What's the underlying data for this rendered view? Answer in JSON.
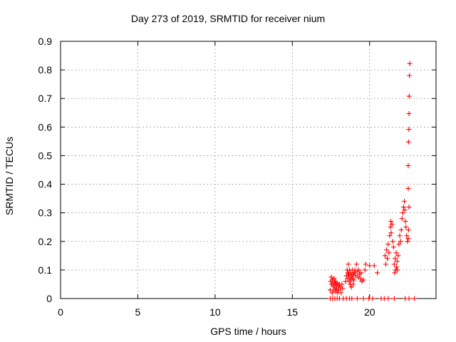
{
  "chart_data": {
    "type": "scatter",
    "title": "Day 273 of 2019, SRMTID for receiver nium",
    "xlabel": "GPS time / hours",
    "ylabel": "SRMTID / TECUs",
    "xlim": [
      0,
      24.3
    ],
    "ylim": [
      0,
      0.9
    ],
    "xticks": [
      0,
      5,
      10,
      15,
      20
    ],
    "yticks": [
      0,
      0.1,
      0.2,
      0.3,
      0.4,
      0.5,
      0.6,
      0.7,
      0.8,
      0.9
    ],
    "grid": true,
    "marker": "+",
    "series": [
      {
        "name": "SRMTID",
        "color": "#ff0000",
        "points": [
          [
            17.45,
            0.0
          ],
          [
            17.6,
            0.0
          ],
          [
            17.75,
            0.0
          ],
          [
            17.9,
            0.0
          ],
          [
            18.05,
            0.0
          ],
          [
            18.3,
            0.0
          ],
          [
            18.5,
            0.0
          ],
          [
            18.7,
            0.0
          ],
          [
            18.85,
            0.0
          ],
          [
            19.2,
            0.0
          ],
          [
            19.6,
            0.0
          ],
          [
            19.95,
            0.0
          ],
          [
            20.2,
            0.0
          ],
          [
            20.75,
            0.0
          ],
          [
            20.95,
            0.0
          ],
          [
            21.2,
            0.0
          ],
          [
            21.6,
            0.0
          ],
          [
            22.3,
            0.0
          ],
          [
            22.55,
            0.0
          ],
          [
            22.9,
            0.0
          ],
          [
            17.45,
            0.03
          ],
          [
            17.48,
            0.06
          ],
          [
            17.52,
            0.075
          ],
          [
            17.55,
            0.05
          ],
          [
            17.58,
            0.02
          ],
          [
            17.6,
            0.065
          ],
          [
            17.63,
            0.045
          ],
          [
            17.66,
            0.03
          ],
          [
            17.7,
            0.07
          ],
          [
            17.72,
            0.055
          ],
          [
            17.75,
            0.04
          ],
          [
            17.78,
            0.06
          ],
          [
            17.8,
            0.025
          ],
          [
            17.83,
            0.05
          ],
          [
            17.86,
            0.035
          ],
          [
            17.9,
            0.055
          ],
          [
            17.93,
            0.02
          ],
          [
            17.96,
            0.045
          ],
          [
            18.0,
            0.03
          ],
          [
            18.05,
            0.05
          ],
          [
            18.1,
            0.04
          ],
          [
            18.15,
            0.02
          ],
          [
            18.2,
            0.05
          ],
          [
            18.25,
            0.035
          ],
          [
            18.45,
            0.06
          ],
          [
            18.5,
            0.08
          ],
          [
            18.55,
            0.1
          ],
          [
            18.58,
            0.07
          ],
          [
            18.6,
            0.09
          ],
          [
            18.62,
            0.12
          ],
          [
            18.65,
            0.085
          ],
          [
            18.68,
            0.06
          ],
          [
            18.7,
            0.1
          ],
          [
            18.72,
            0.075
          ],
          [
            18.75,
            0.05
          ],
          [
            18.78,
            0.09
          ],
          [
            18.8,
            0.065
          ],
          [
            18.82,
            0.04
          ],
          [
            18.85,
            0.08
          ],
          [
            18.88,
            0.1
          ],
          [
            18.9,
            0.07
          ],
          [
            18.93,
            0.05
          ],
          [
            18.95,
            0.085
          ],
          [
            18.98,
            0.065
          ],
          [
            19.0,
            0.09
          ],
          [
            19.05,
            0.1
          ],
          [
            19.1,
            0.08
          ],
          [
            19.15,
            0.12
          ],
          [
            19.2,
            0.095
          ],
          [
            19.25,
            0.075
          ],
          [
            19.3,
            0.1
          ],
          [
            19.35,
            0.085
          ],
          [
            19.4,
            0.07
          ],
          [
            19.45,
            0.09
          ],
          [
            19.5,
            0.06
          ],
          [
            19.6,
            0.065
          ],
          [
            19.7,
            0.1
          ],
          [
            19.75,
            0.12
          ],
          [
            20.0,
            0.115
          ],
          [
            20.3,
            0.115
          ],
          [
            20.5,
            0.09
          ],
          [
            21.0,
            0.15
          ],
          [
            21.05,
            0.12
          ],
          [
            21.1,
            0.17
          ],
          [
            21.15,
            0.14
          ],
          [
            21.2,
            0.19
          ],
          [
            21.25,
            0.16
          ],
          [
            21.3,
            0.22
          ],
          [
            21.35,
            0.25
          ],
          [
            21.38,
            0.27
          ],
          [
            21.4,
            0.23
          ],
          [
            21.45,
            0.26
          ],
          [
            21.5,
            0.2
          ],
          [
            21.55,
            0.18
          ],
          [
            21.6,
            0.12
          ],
          [
            21.62,
            0.09
          ],
          [
            21.65,
            0.14
          ],
          [
            21.7,
            0.1
          ],
          [
            21.72,
            0.16
          ],
          [
            21.75,
            0.11
          ],
          [
            21.78,
            0.13
          ],
          [
            21.8,
            0.1
          ],
          [
            21.85,
            0.15
          ],
          [
            21.9,
            0.19
          ],
          [
            21.95,
            0.22
          ],
          [
            22.0,
            0.2
          ],
          [
            22.05,
            0.24
          ],
          [
            22.1,
            0.28
          ],
          [
            22.15,
            0.3
          ],
          [
            22.2,
            0.32
          ],
          [
            22.25,
            0.34
          ],
          [
            22.28,
            0.31
          ],
          [
            22.32,
            0.27
          ],
          [
            22.35,
            0.25
          ],
          [
            22.4,
            0.22
          ],
          [
            22.45,
            0.2
          ],
          [
            22.5,
            0.21
          ],
          [
            22.52,
            0.24
          ],
          [
            22.55,
            0.32
          ],
          [
            22.5,
            0.385
          ],
          [
            22.5,
            0.465
          ],
          [
            22.52,
            0.548
          ],
          [
            22.54,
            0.592
          ],
          [
            22.55,
            0.647
          ],
          [
            22.56,
            0.708
          ],
          [
            22.58,
            0.78
          ],
          [
            22.6,
            0.822
          ]
        ]
      }
    ]
  }
}
